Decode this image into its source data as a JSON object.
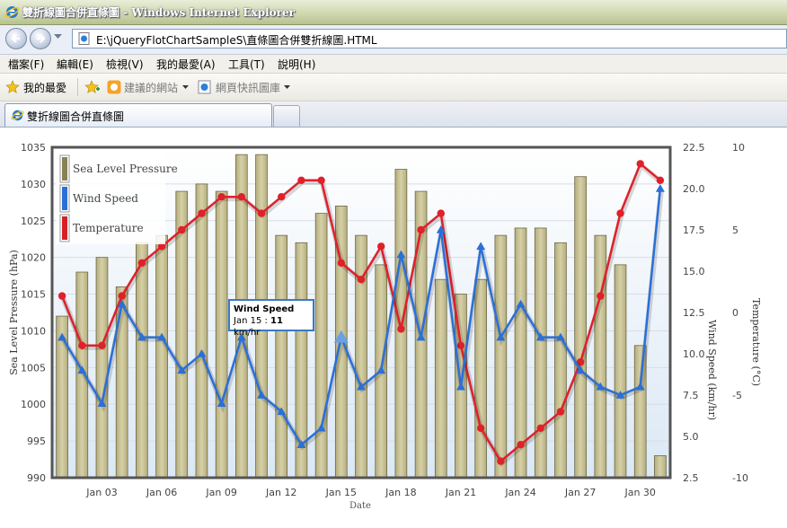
{
  "window": {
    "title": "雙折線圖合併直條圖 - Windows Internet Explorer"
  },
  "address": {
    "url": "E:\\jQueryFlotChartSampleS\\直條圖合併雙折線圖.HTML"
  },
  "menu": [
    "檔案(F)",
    "編輯(E)",
    "檢視(V)",
    "我的最愛(A)",
    "工具(T)",
    "說明(H)"
  ],
  "favorites": {
    "label": "我的最愛",
    "suggested": "建議的網站",
    "webslice": "網頁快訊圖庫"
  },
  "tab": {
    "title": "雙折線圖合併直條圖"
  },
  "tooltip": {
    "title": "Wind Speed",
    "date": "Jan 15 : ",
    "value": "11",
    "unit": " km/hr"
  },
  "chart_data": {
    "type": "bar+line",
    "xlabel": "Date",
    "x_ticks": [
      "Jan 03",
      "Jan 06",
      "Jan 09",
      "Jan 12",
      "Jan 15",
      "Jan 18",
      "Jan 21",
      "Jan 24",
      "Jan 27",
      "Jan 30"
    ],
    "days": [
      1,
      2,
      3,
      4,
      5,
      6,
      7,
      8,
      9,
      10,
      11,
      12,
      13,
      14,
      15,
      16,
      17,
      18,
      19,
      20,
      21,
      22,
      23,
      24,
      25,
      26,
      27,
      28,
      29,
      30,
      31
    ],
    "legend": [
      "Sea Level Pressure",
      "Wind Speed",
      "Temperature"
    ],
    "legend_position": "top-left",
    "grid": true,
    "colors": {
      "pressure": "#c8c195",
      "wind": "#2b6fd8",
      "temperature": "#e0202a"
    },
    "axes": {
      "pressure": {
        "label": "Sea Level Pressure (hPa)",
        "min": 990,
        "max": 1035,
        "ticks": [
          "1035",
          "1030",
          "1025",
          "1020",
          "1015",
          "1010",
          "1005",
          "1000",
          "995",
          "990"
        ]
      },
      "wind": {
        "label": "Wind Speed (km/hr)",
        "min": 2.5,
        "max": 22.5,
        "ticks": [
          "22.5",
          "20.0",
          "17.5",
          "15.0",
          "12.5",
          "10.0",
          "7.5",
          "5.0",
          "2.5"
        ]
      },
      "temperature": {
        "label": "Temperature (°C)",
        "min": -10,
        "max": 10,
        "ticks": [
          "10",
          "5",
          "0",
          "-5",
          "-10"
        ]
      }
    },
    "series": [
      {
        "name": "Sea Level Pressure",
        "values": [
          1012,
          1018,
          1020,
          1016,
          1022,
          1023,
          1029,
          1030,
          1029,
          1034,
          1034,
          1023,
          1022,
          1026,
          1027,
          1023,
          1019,
          1032,
          1029,
          1017,
          1015,
          1017,
          1023,
          1024,
          1024,
          1022,
          1031,
          1023,
          1019,
          1008,
          993
        ]
      },
      {
        "name": "Wind Speed",
        "values": [
          11,
          9,
          7,
          13,
          11,
          11,
          9,
          10,
          7,
          11,
          7.5,
          6.5,
          4.5,
          5.5,
          11,
          8,
          9,
          16,
          11,
          17.5,
          8,
          16.5,
          11,
          13,
          11,
          11,
          9,
          8,
          7.5,
          8,
          20
        ]
      },
      {
        "name": "Temperature",
        "values": [
          1,
          -2,
          -2,
          1,
          3,
          4,
          5,
          6,
          7,
          7,
          6,
          7,
          8,
          8,
          3,
          2,
          4,
          -1,
          5,
          6,
          -2,
          -7,
          -9,
          -8,
          -7,
          -6,
          -3,
          1,
          6,
          9,
          8
        ]
      }
    ]
  }
}
